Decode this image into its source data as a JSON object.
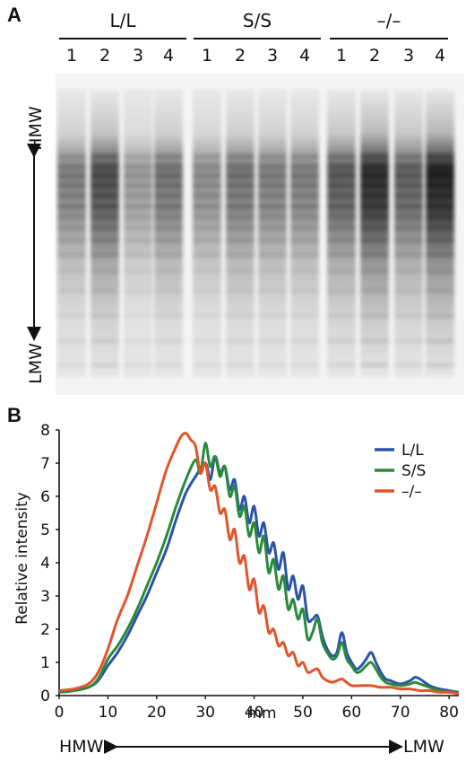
{
  "panel_a": {
    "letter": "A",
    "groups": [
      {
        "label": "L/L",
        "lanes": [
          "1",
          "2",
          "3",
          "4"
        ]
      },
      {
        "label": "S/S",
        "lanes": [
          "1",
          "2",
          "3",
          "4"
        ]
      },
      {
        "label": "–/–",
        "lanes": [
          "1",
          "2",
          "3",
          "4"
        ]
      }
    ],
    "lane_intensity": [
      0.55,
      0.78,
      0.42,
      0.6,
      0.48,
      0.6,
      0.55,
      0.55,
      0.72,
      0.95,
      0.7,
      1.0
    ],
    "arrow_top_label": "HMW",
    "arrow_bottom_label": "LMW"
  },
  "panel_b": {
    "letter": "B",
    "bottom_left_label": "HMW",
    "bottom_right_label": "LMW"
  },
  "chart_data": {
    "type": "line",
    "title": "",
    "xlabel": "mm",
    "ylabel": "Relative intensity",
    "xlim": [
      0,
      82
    ],
    "ylim": [
      0,
      8
    ],
    "xticks": [
      "0",
      "10",
      "20",
      "30",
      "40",
      "50",
      "60",
      "70",
      "80"
    ],
    "yticks": [
      "0",
      "1",
      "2",
      "3",
      "4",
      "5",
      "6",
      "7",
      "8"
    ],
    "legend_position": "top-right",
    "series": [
      {
        "name": "L/L",
        "color": "#2a52a8",
        "points": [
          [
            0,
            0.1
          ],
          [
            3,
            0.15
          ],
          [
            6,
            0.25
          ],
          [
            8,
            0.45
          ],
          [
            10,
            0.9
          ],
          [
            12,
            1.3
          ],
          [
            14,
            1.8
          ],
          [
            16,
            2.4
          ],
          [
            18,
            3.0
          ],
          [
            20,
            3.7
          ],
          [
            22,
            4.4
          ],
          [
            24,
            5.3
          ],
          [
            26,
            6.1
          ],
          [
            28,
            6.6
          ],
          [
            30,
            7.0
          ],
          [
            31,
            6.5
          ],
          [
            32,
            7.2
          ],
          [
            33,
            6.7
          ],
          [
            34,
            6.9
          ],
          [
            35,
            6.2
          ],
          [
            36,
            6.5
          ],
          [
            37,
            5.6
          ],
          [
            38,
            6.0
          ],
          [
            39,
            5.2
          ],
          [
            40,
            5.7
          ],
          [
            41,
            4.8
          ],
          [
            42,
            5.2
          ],
          [
            43,
            4.3
          ],
          [
            44,
            4.6
          ],
          [
            45,
            3.8
          ],
          [
            46,
            4.3
          ],
          [
            47,
            3.2
          ],
          [
            48,
            3.6
          ],
          [
            49,
            2.9
          ],
          [
            50,
            3.3
          ],
          [
            51,
            2.3
          ],
          [
            52,
            2.3
          ],
          [
            53,
            2.4
          ],
          [
            54,
            1.8
          ],
          [
            55,
            1.4
          ],
          [
            56,
            1.2
          ],
          [
            57,
            1.3
          ],
          [
            58,
            1.9
          ],
          [
            59,
            1.3
          ],
          [
            60,
            1.0
          ],
          [
            61,
            0.8
          ],
          [
            62,
            0.9
          ],
          [
            63,
            1.1
          ],
          [
            64,
            1.3
          ],
          [
            65,
            1.0
          ],
          [
            66,
            0.7
          ],
          [
            67,
            0.5
          ],
          [
            68,
            0.45
          ],
          [
            70,
            0.35
          ],
          [
            72,
            0.45
          ],
          [
            73,
            0.55
          ],
          [
            74,
            0.5
          ],
          [
            76,
            0.3
          ],
          [
            78,
            0.2
          ],
          [
            80,
            0.15
          ],
          [
            82,
            0.1
          ]
        ]
      },
      {
        "name": "S/S",
        "color": "#2a8a3c",
        "points": [
          [
            0,
            0.1
          ],
          [
            3,
            0.15
          ],
          [
            6,
            0.25
          ],
          [
            8,
            0.5
          ],
          [
            10,
            1.1
          ],
          [
            12,
            1.5
          ],
          [
            14,
            2.0
          ],
          [
            16,
            2.6
          ],
          [
            18,
            3.3
          ],
          [
            20,
            4.0
          ],
          [
            22,
            4.8
          ],
          [
            24,
            5.7
          ],
          [
            26,
            6.5
          ],
          [
            28,
            7.1
          ],
          [
            29,
            6.7
          ],
          [
            30,
            7.6
          ],
          [
            31,
            6.9
          ],
          [
            32,
            7.2
          ],
          [
            33,
            6.6
          ],
          [
            34,
            6.9
          ],
          [
            35,
            6.0
          ],
          [
            36,
            6.3
          ],
          [
            37,
            5.4
          ],
          [
            38,
            5.7
          ],
          [
            39,
            4.8
          ],
          [
            40,
            5.2
          ],
          [
            41,
            4.3
          ],
          [
            42,
            4.8
          ],
          [
            43,
            3.7
          ],
          [
            44,
            4.1
          ],
          [
            45,
            3.2
          ],
          [
            46,
            3.6
          ],
          [
            47,
            2.6
          ],
          [
            48,
            2.9
          ],
          [
            49,
            2.3
          ],
          [
            50,
            2.6
          ],
          [
            51,
            1.7
          ],
          [
            52,
            1.9
          ],
          [
            53,
            2.3
          ],
          [
            54,
            1.6
          ],
          [
            55,
            1.3
          ],
          [
            56,
            1.1
          ],
          [
            57,
            1.2
          ],
          [
            58,
            1.6
          ],
          [
            59,
            1.1
          ],
          [
            60,
            0.9
          ],
          [
            61,
            0.7
          ],
          [
            62,
            0.75
          ],
          [
            63,
            0.9
          ],
          [
            64,
            1.0
          ],
          [
            65,
            0.8
          ],
          [
            66,
            0.55
          ],
          [
            67,
            0.4
          ],
          [
            68,
            0.35
          ],
          [
            70,
            0.3
          ],
          [
            72,
            0.35
          ],
          [
            73,
            0.4
          ],
          [
            74,
            0.35
          ],
          [
            76,
            0.25
          ],
          [
            78,
            0.15
          ],
          [
            80,
            0.1
          ],
          [
            82,
            0.1
          ]
        ]
      },
      {
        "name": "–/–",
        "color": "#e0552b",
        "points": [
          [
            0,
            0.15
          ],
          [
            3,
            0.2
          ],
          [
            6,
            0.35
          ],
          [
            8,
            0.7
          ],
          [
            10,
            1.4
          ],
          [
            12,
            2.3
          ],
          [
            14,
            3.0
          ],
          [
            16,
            3.9
          ],
          [
            18,
            4.8
          ],
          [
            20,
            5.8
          ],
          [
            22,
            6.8
          ],
          [
            24,
            7.5
          ],
          [
            25,
            7.8
          ],
          [
            26,
            7.9
          ],
          [
            27,
            7.7
          ],
          [
            28,
            7.5
          ],
          [
            29,
            6.7
          ],
          [
            30,
            7.0
          ],
          [
            31,
            6.2
          ],
          [
            32,
            6.3
          ],
          [
            33,
            5.5
          ],
          [
            34,
            5.6
          ],
          [
            35,
            4.7
          ],
          [
            36,
            5.0
          ],
          [
            37,
            4.0
          ],
          [
            38,
            4.2
          ],
          [
            39,
            3.2
          ],
          [
            40,
            3.5
          ],
          [
            41,
            2.5
          ],
          [
            42,
            2.7
          ],
          [
            43,
            1.9
          ],
          [
            44,
            2.0
          ],
          [
            45,
            1.5
          ],
          [
            46,
            1.6
          ],
          [
            47,
            1.2
          ],
          [
            48,
            1.3
          ],
          [
            49,
            0.9
          ],
          [
            50,
            1.0
          ],
          [
            51,
            0.7
          ],
          [
            52,
            0.75
          ],
          [
            53,
            0.8
          ],
          [
            54,
            0.55
          ],
          [
            55,
            0.45
          ],
          [
            56,
            0.4
          ],
          [
            57,
            0.45
          ],
          [
            58,
            0.5
          ],
          [
            59,
            0.4
          ],
          [
            60,
            0.3
          ],
          [
            62,
            0.3
          ],
          [
            64,
            0.3
          ],
          [
            66,
            0.25
          ],
          [
            68,
            0.25
          ],
          [
            70,
            0.2
          ],
          [
            72,
            0.2
          ],
          [
            74,
            0.15
          ],
          [
            76,
            0.15
          ],
          [
            78,
            0.1
          ],
          [
            80,
            0.1
          ],
          [
            82,
            0.05
          ]
        ]
      }
    ]
  }
}
